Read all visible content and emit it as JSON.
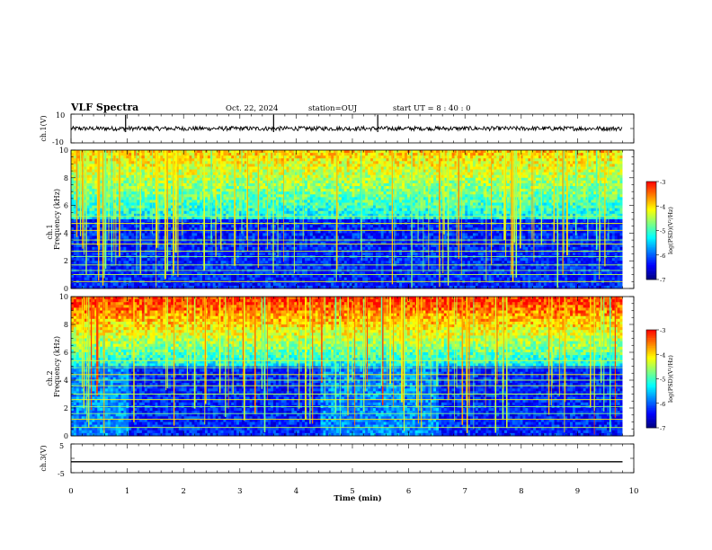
{
  "header": {
    "title": "VLF Spectra",
    "date": "Oct. 22, 2024",
    "station": "station=OUJ",
    "start_time": "start  UT =   8  : 40 : 0"
  },
  "chart_data": [
    {
      "type": "line",
      "panel": "ch1-waveform",
      "ylabel": "ch.1(V)",
      "ylim": [
        -10,
        10
      ],
      "y_ticks": [
        "10",
        "-10"
      ],
      "baseline": 0,
      "description": "",
      "series": [
        {
          "values_range": [
            -1.5,
            1.5
          ]
        }
      ],
      "spikes_at_min": [
        0.97,
        3.6,
        5.45
      ]
    },
    {
      "type": "heatmap",
      "panel": "ch1-spectrogram",
      "ylabel": "ch.1\nFrequency (kHz)",
      "ylim": [
        0,
        10
      ],
      "y_ticks": [
        "0",
        "2",
        "4",
        "6",
        "8",
        "10"
      ],
      "xlim": [
        0,
        10
      ],
      "data_extent_min": [
        0,
        9.8
      ],
      "colorbar": {
        "label": "log(PSD)(V²/Hz)",
        "range": [
          -7,
          -3
        ],
        "ticks": [
          "-3",
          "-4",
          "-5",
          "-6",
          "-7"
        ],
        "colors": [
          "#00007f",
          "#0000ff",
          "#0080ff",
          "#00ffff",
          "#80ff80",
          "#ffff00",
          "#ff8000",
          "#ff0000",
          "#ffffff"
        ]
      },
      "transmitter_lines_khz": [
        0.5,
        1.0,
        1.3,
        1.7,
        2.3,
        2.7,
        3.2,
        3.5,
        4.2,
        4.7,
        5.2
      ],
      "band_limit_khz": 5.0
    },
    {
      "type": "heatmap",
      "panel": "ch2-spectrogram",
      "ylabel": "ch.2\nFrequency (kHz)",
      "ylim": [
        0,
        10
      ],
      "y_ticks": [
        "0",
        "2",
        "4",
        "6",
        "8",
        "10"
      ],
      "xlim": [
        0,
        10
      ],
      "data_extent_min": [
        0,
        9.8
      ],
      "colorbar": {
        "label": "log(PSD)(V²/Hz)",
        "range": [
          -7,
          -3
        ],
        "ticks": [
          "-3",
          "-4",
          "-5",
          "-6",
          "-7"
        ],
        "colors": [
          "#00007f",
          "#0000ff",
          "#0080ff",
          "#00ffff",
          "#80ff80",
          "#ffff00",
          "#ff8000",
          "#ff0000",
          "#ffffff"
        ]
      },
      "transmitter_lines_khz": [
        0.6,
        1.2,
        1.6,
        2.1,
        2.6,
        3.0,
        3.6,
        4.0,
        4.4,
        4.9,
        5.4
      ],
      "band_limit_khz": 5.0
    },
    {
      "type": "line",
      "panel": "ch3-waveform",
      "ylabel": "ch.3(V)",
      "ylim": [
        -5,
        5
      ],
      "y_ticks": [
        "5",
        "-5"
      ],
      "xlabel": "Time (min)",
      "x_ticks": [
        "0",
        "1",
        "2",
        "3",
        "4",
        "5",
        "6",
        "7",
        "8",
        "9",
        "10"
      ],
      "xlim": [
        0,
        10
      ],
      "series": [
        {
          "values": [
            -1.2,
            -1.2
          ]
        }
      ]
    }
  ]
}
